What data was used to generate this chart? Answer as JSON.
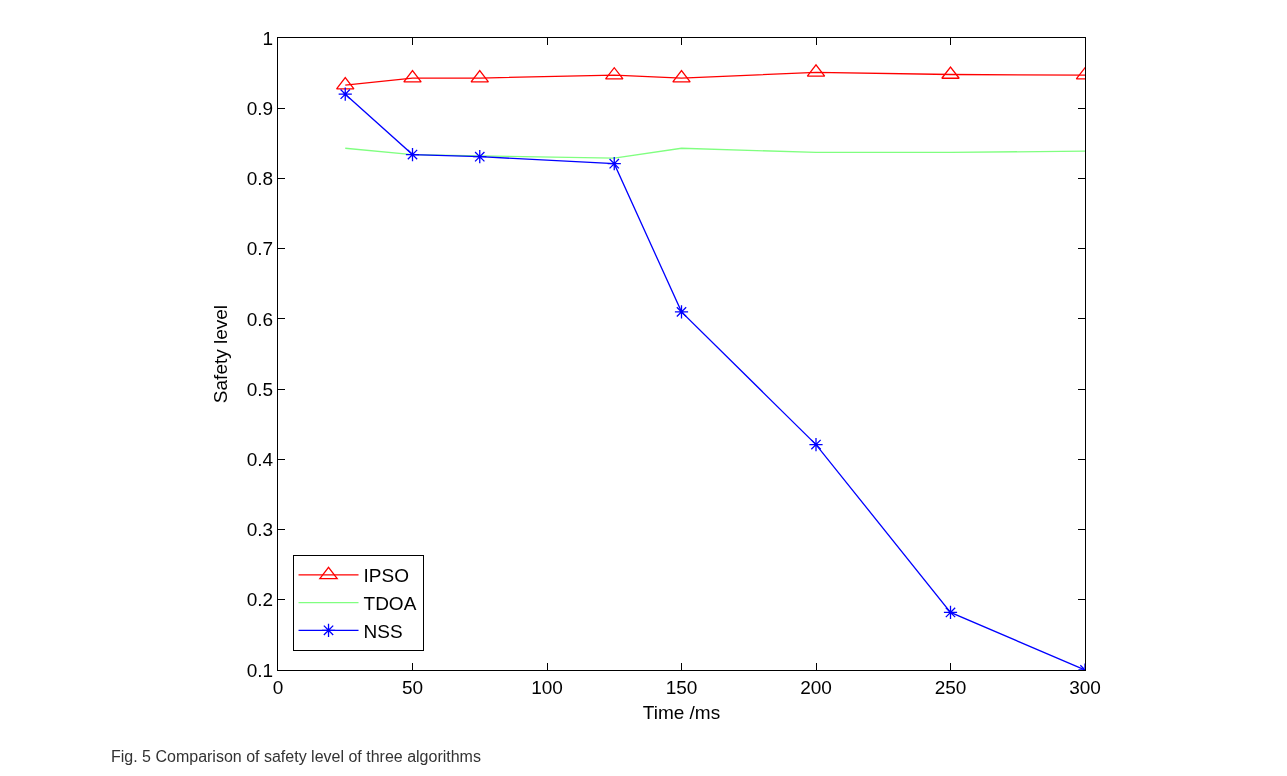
{
  "chart_data": {
    "type": "line",
    "xlabel": "Time /ms",
    "ylabel": "Safety level",
    "x": [
      25,
      50,
      75,
      125,
      150,
      200,
      250,
      300
    ],
    "series": [
      {
        "name": "IPSO",
        "color": "#ff0000",
        "marker": "triangle",
        "values": [
          0.933,
          0.943,
          0.943,
          0.947,
          0.943,
          0.951,
          0.948,
          0.947
        ]
      },
      {
        "name": "TDOA",
        "color": "#80ff80",
        "marker": "none",
        "values": [
          0.843,
          0.834,
          0.832,
          0.829,
          0.843,
          0.837,
          0.837,
          0.839
        ]
      },
      {
        "name": "NSS",
        "color": "#0000ff",
        "marker": "cross",
        "values": [
          0.92,
          0.834,
          0.831,
          0.821,
          0.61,
          0.421,
          0.182,
          0.1
        ]
      }
    ],
    "xlim": [
      0,
      300
    ],
    "xticks": [
      0,
      50,
      100,
      150,
      200,
      250,
      300
    ],
    "ylim": [
      0.1,
      1
    ],
    "yticks": [
      0.1,
      0.2,
      0.3,
      0.4,
      0.5,
      0.6,
      0.7,
      0.8,
      0.9,
      1
    ],
    "legend": "bottom left",
    "annotations": [
      "Fig. 5 Comparison of safety level of three algorithms"
    ]
  }
}
